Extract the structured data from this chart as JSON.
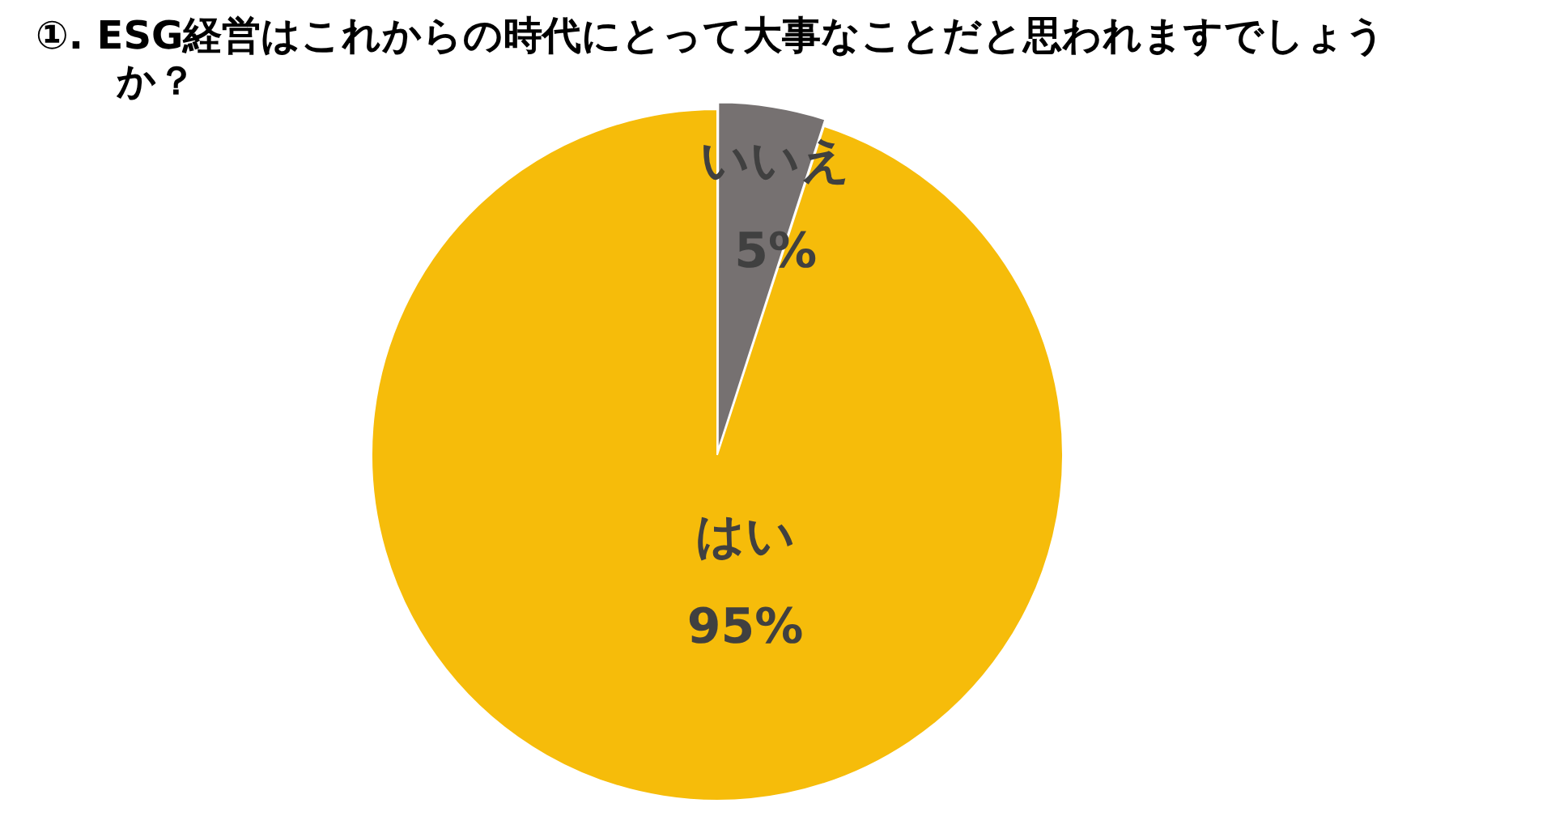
{
  "chart_data": {
    "type": "pie",
    "title": "①. ESG経営はこれからの時代にとって大事なことだと思われますでしょうか？",
    "categories": [
      "いいえ",
      "はい"
    ],
    "values": [
      5,
      95
    ],
    "colors": [
      "#767171",
      "#f6bc0a"
    ],
    "value_labels": [
      "5%",
      "95%"
    ],
    "legend": false
  }
}
